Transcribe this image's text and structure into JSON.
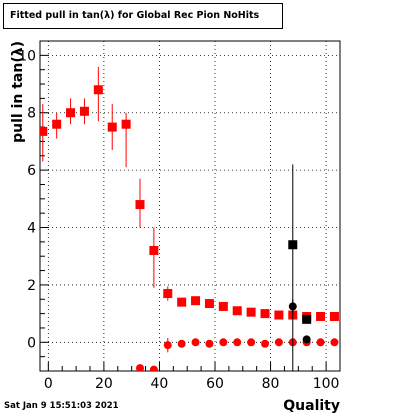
{
  "chart_data": {
    "type": "scatter",
    "title": "Fitted pull in tan(λ) for Global Rec Pion NoHits",
    "xlabel": "Quality",
    "ylabel": "pull in tan(λ)",
    "xlim": [
      -3,
      105
    ],
    "ylim": [
      -1,
      10.5
    ],
    "xticks": [
      "0",
      "20",
      "40",
      "60",
      "80",
      "100"
    ],
    "yticks": [
      "0",
      "2",
      "4",
      "6",
      "8",
      "10"
    ],
    "grid": true,
    "legend": "none",
    "series": [
      {
        "color": "#ff0000",
        "marker": "square",
        "points": [
          {
            "x": -2,
            "y": 7.35,
            "ylo": 6.3,
            "yhi": 8.3
          },
          {
            "x": 3,
            "y": 7.6,
            "ylo": 7.1,
            "yhi": 8.0
          },
          {
            "x": 8,
            "y": 8.0,
            "ylo": 7.6,
            "yhi": 8.5
          },
          {
            "x": 13,
            "y": 8.05,
            "ylo": 7.6,
            "yhi": 8.5
          },
          {
            "x": 18,
            "y": 8.8,
            "ylo": 7.7,
            "yhi": 9.6
          },
          {
            "x": 23,
            "y": 7.5,
            "ylo": 6.7,
            "yhi": 8.3
          },
          {
            "x": 28,
            "y": 7.6,
            "ylo": 6.1,
            "yhi": 8.0
          },
          {
            "x": 33,
            "y": 4.8,
            "ylo": 4.0,
            "yhi": 5.7
          },
          {
            "x": 38,
            "y": 3.2,
            "ylo": 1.9,
            "yhi": 4.0
          },
          {
            "x": 43,
            "y": 1.7,
            "ylo": 1.45,
            "yhi": 1.95
          },
          {
            "x": 48,
            "y": 1.4,
            "ylo": 1.3,
            "yhi": 1.5
          },
          {
            "x": 53,
            "y": 1.45,
            "ylo": 1.35,
            "yhi": 1.55
          },
          {
            "x": 58,
            "y": 1.35,
            "ylo": 1.25,
            "yhi": 1.45
          },
          {
            "x": 63,
            "y": 1.25,
            "ylo": 1.15,
            "yhi": 1.35
          },
          {
            "x": 68,
            "y": 1.1,
            "ylo": 1.0,
            "yhi": 1.2
          },
          {
            "x": 73,
            "y": 1.05,
            "ylo": 0.95,
            "yhi": 1.15
          },
          {
            "x": 78,
            "y": 1.0,
            "ylo": 0.9,
            "yhi": 1.1
          },
          {
            "x": 83,
            "y": 0.95,
            "ylo": 0.85,
            "yhi": 1.05
          },
          {
            "x": 88,
            "y": 0.95,
            "ylo": 0.85,
            "yhi": 1.05
          },
          {
            "x": 93,
            "y": 0.9,
            "ylo": 0.8,
            "yhi": 1.0
          },
          {
            "x": 98,
            "y": 0.9,
            "ylo": 0.8,
            "yhi": 1.0
          },
          {
            "x": 103,
            "y": 0.9,
            "ylo": 0.8,
            "yhi": 1.0
          }
        ]
      },
      {
        "color": "#ff0000",
        "marker": "circle",
        "points": [
          {
            "x": 33,
            "y": -0.9,
            "ylo": -1.0,
            "yhi": -0.8
          },
          {
            "x": 38,
            "y": -0.95,
            "ylo": -1.0,
            "yhi": -0.85
          },
          {
            "x": 43,
            "y": -0.1,
            "ylo": -0.35,
            "yhi": 0.15
          },
          {
            "x": 48,
            "y": -0.05,
            "ylo": -0.15,
            "yhi": 0.05
          },
          {
            "x": 53,
            "y": 0.0,
            "ylo": -0.1,
            "yhi": 0.1
          },
          {
            "x": 58,
            "y": -0.05,
            "ylo": -0.15,
            "yhi": 0.05
          },
          {
            "x": 63,
            "y": 0.0,
            "ylo": -0.1,
            "yhi": 0.1
          },
          {
            "x": 68,
            "y": 0.0,
            "ylo": -0.1,
            "yhi": 0.1
          },
          {
            "x": 73,
            "y": 0.0,
            "ylo": -0.1,
            "yhi": 0.1
          },
          {
            "x": 78,
            "y": -0.05,
            "ylo": -0.15,
            "yhi": 0.05
          },
          {
            "x": 83,
            "y": 0.0,
            "ylo": -0.1,
            "yhi": 0.1
          },
          {
            "x": 88,
            "y": 0.0,
            "ylo": -0.1,
            "yhi": 0.1
          },
          {
            "x": 93,
            "y": 0.0,
            "ylo": -0.1,
            "yhi": 0.1
          },
          {
            "x": 98,
            "y": 0.0,
            "ylo": -0.1,
            "yhi": 0.1
          },
          {
            "x": 103,
            "y": 0.0,
            "ylo": -0.1,
            "yhi": 0.1
          }
        ]
      },
      {
        "color": "#000000",
        "marker": "square",
        "points": [
          {
            "x": 88,
            "y": 3.4,
            "ylo": -1.0,
            "yhi": 6.2
          },
          {
            "x": 93,
            "y": 0.8,
            "ylo": 0.7,
            "yhi": 0.9
          }
        ]
      },
      {
        "color": "#000000",
        "marker": "circle",
        "points": [
          {
            "x": 88,
            "y": 1.25,
            "ylo": 1.0,
            "yhi": 1.5
          },
          {
            "x": 93,
            "y": 0.1,
            "ylo": 0.0,
            "yhi": 0.2
          }
        ]
      }
    ]
  },
  "footer": {
    "timestamp": "Sat Jan  9 15:51:03 2021"
  }
}
